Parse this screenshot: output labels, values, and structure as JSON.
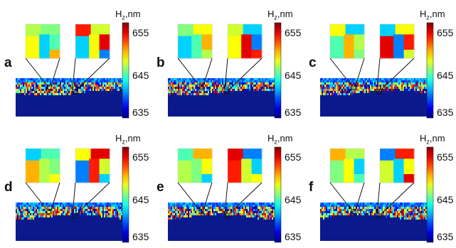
{
  "figure": {
    "colormap": "jet",
    "colorbar": {
      "label_base": "H",
      "label_sub": "z",
      "label_unit": ",nm",
      "ticks": [
        "655",
        "645",
        "635"
      ],
      "range": [
        635,
        655
      ]
    },
    "colors": {
      "substrate": "#0a1a8c",
      "outline": "#111111",
      "background": "#ffffff"
    },
    "panels": [
      {
        "letter": "a"
      },
      {
        "letter": "b"
      },
      {
        "letter": "c"
      },
      {
        "letter": "d"
      },
      {
        "letter": "e"
      },
      {
        "letter": "f"
      }
    ]
  }
}
